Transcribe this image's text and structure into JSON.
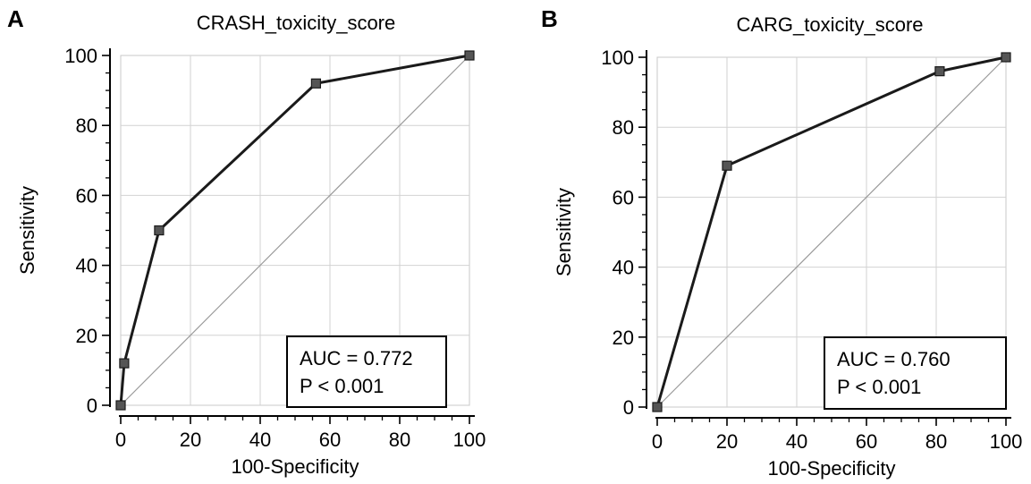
{
  "chart_data": [
    {
      "type": "line",
      "panel": "A",
      "title": "CRASH_toxicity_score",
      "xlabel": "100-Specificity",
      "ylabel": "Sensitivity",
      "xlim": [
        0,
        100
      ],
      "ylim": [
        0,
        100
      ],
      "xticks": [
        0,
        20,
        40,
        60,
        80,
        100
      ],
      "yticks": [
        0,
        20,
        40,
        60,
        80,
        100
      ],
      "grid": true,
      "reference_line": true,
      "series": [
        {
          "x": [
            0,
            1,
            11,
            56,
            100
          ],
          "y": [
            0,
            12,
            50,
            92,
            100
          ]
        }
      ],
      "annotation": {
        "auc": "AUC = 0.772",
        "p": "P < 0.001"
      }
    },
    {
      "type": "line",
      "panel": "B",
      "title": "CARG_toxicity_score",
      "xlabel": "100-Specificity",
      "ylabel": "Sensitivity",
      "xlim": [
        0,
        100
      ],
      "ylim": [
        0,
        100
      ],
      "xticks": [
        0,
        20,
        40,
        60,
        80,
        100
      ],
      "yticks": [
        0,
        20,
        40,
        60,
        80,
        100
      ],
      "grid": true,
      "reference_line": true,
      "series": [
        {
          "x": [
            0,
            20,
            81,
            100
          ],
          "y": [
            0,
            69,
            96,
            100
          ]
        }
      ],
      "annotation": {
        "auc": "AUC = 0.760",
        "p": "P < 0.001"
      }
    }
  ]
}
